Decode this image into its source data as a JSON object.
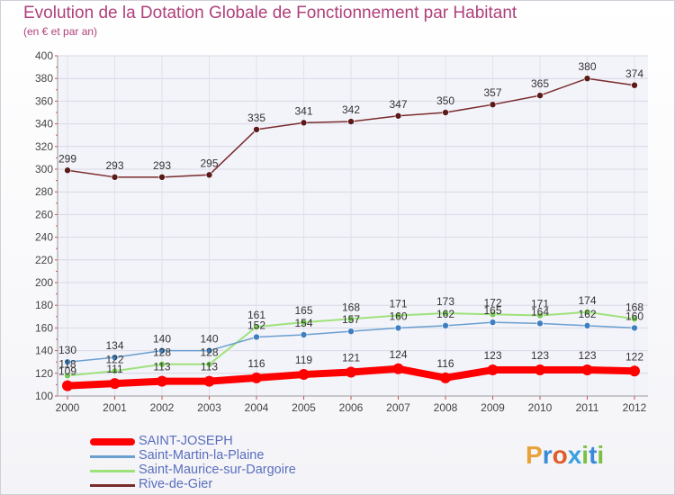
{
  "chart_data": {
    "type": "line",
    "title": "Evolution de la Dotation Globale de Fonctionnement par Habitant",
    "subtitle": "(en € et par an)",
    "xlabel": "",
    "ylabel": "",
    "ylim": [
      100,
      400
    ],
    "yticks": [
      100,
      120,
      140,
      160,
      180,
      200,
      220,
      240,
      260,
      280,
      300,
      320,
      340,
      360,
      380,
      400
    ],
    "categories": [
      "2000",
      "2001",
      "2002",
      "2003",
      "2004",
      "2005",
      "2006",
      "2007",
      "2008",
      "2009",
      "2010",
      "2011",
      "2012"
    ],
    "series": [
      {
        "name": "Rive-de-Gier",
        "color": "#7a2b2b",
        "values": [
          299,
          293,
          293,
          295,
          335,
          341,
          342,
          347,
          350,
          357,
          365,
          380,
          374
        ]
      },
      {
        "name": "Saint-Maurice-sur-Dargoire",
        "color": "#9ee27a",
        "values": [
          118,
          122,
          128,
          128,
          161,
          165,
          168,
          171,
          173,
          172,
          171,
          174,
          168
        ]
      },
      {
        "name": "Saint-Martin-la-Plaine",
        "color": "#6a9fd0",
        "values": [
          130,
          134,
          140,
          140,
          152,
          154,
          157,
          160,
          162,
          165,
          164,
          162,
          160
        ]
      },
      {
        "name": "SAINT-JOSEPH",
        "color": "#ff0000",
        "values": [
          109,
          111,
          113,
          113,
          116,
          119,
          121,
          124,
          116,
          123,
          123,
          123,
          122
        ]
      }
    ],
    "legend": [
      {
        "name": "SAINT-JOSEPH",
        "color": "#ff0000"
      },
      {
        "name": "Saint-Martin-la-Plaine",
        "color": "#6a9fd0"
      },
      {
        "name": "Saint-Maurice-sur-Dargoire",
        "color": "#9ee27a"
      },
      {
        "name": "Rive-de-Gier",
        "color": "#7a2b2b"
      }
    ]
  },
  "logo": {
    "text": "Proxiti",
    "letters": [
      "P",
      "r",
      "o",
      "x",
      "i",
      "t",
      "i"
    ]
  }
}
